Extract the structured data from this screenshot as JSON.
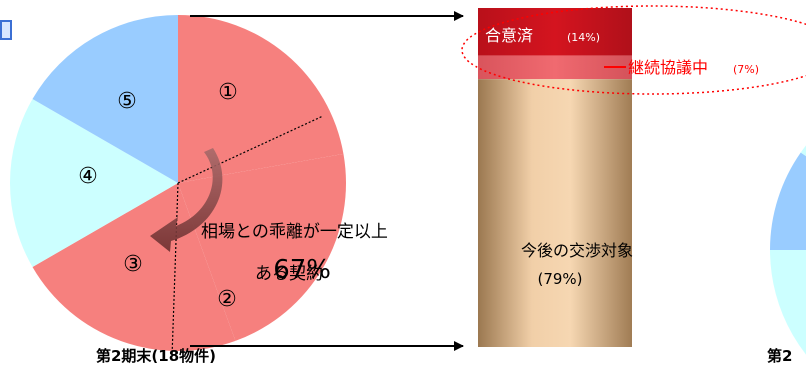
{
  "chart_data": [
    {
      "type": "pie",
      "labels": [
        "①",
        "②",
        "③",
        "④",
        "⑤"
      ],
      "values": [
        4,
        4,
        4,
        3,
        3
      ],
      "colors": [
        "#f6807e",
        "#f6807e",
        "#f6807e",
        "#ccffff",
        "#99ccff"
      ],
      "annotation": {
        "line1": "相場との乖離が一定以上",
        "line2_prefix": "ある契約",
        "line2_value": "67%"
      },
      "caption": "第2期末(18物件)"
    },
    {
      "type": "bar",
      "stacked": true,
      "segments": [
        {
          "label": "合意済",
          "value_label": "(14%)",
          "value": 14,
          "color": "#c0121e"
        },
        {
          "label": "継続協議中",
          "value_label": "(7%)",
          "value": 7,
          "color": "#ee5c64"
        },
        {
          "label": "今後の交渉対象",
          "value_label": "(79%)",
          "value": 79,
          "color": "#e3b486"
        }
      ]
    },
    {
      "type": "pie",
      "partial": true,
      "colors": [
        "#99ccff",
        "#ccffff"
      ],
      "caption": "第2"
    }
  ]
}
